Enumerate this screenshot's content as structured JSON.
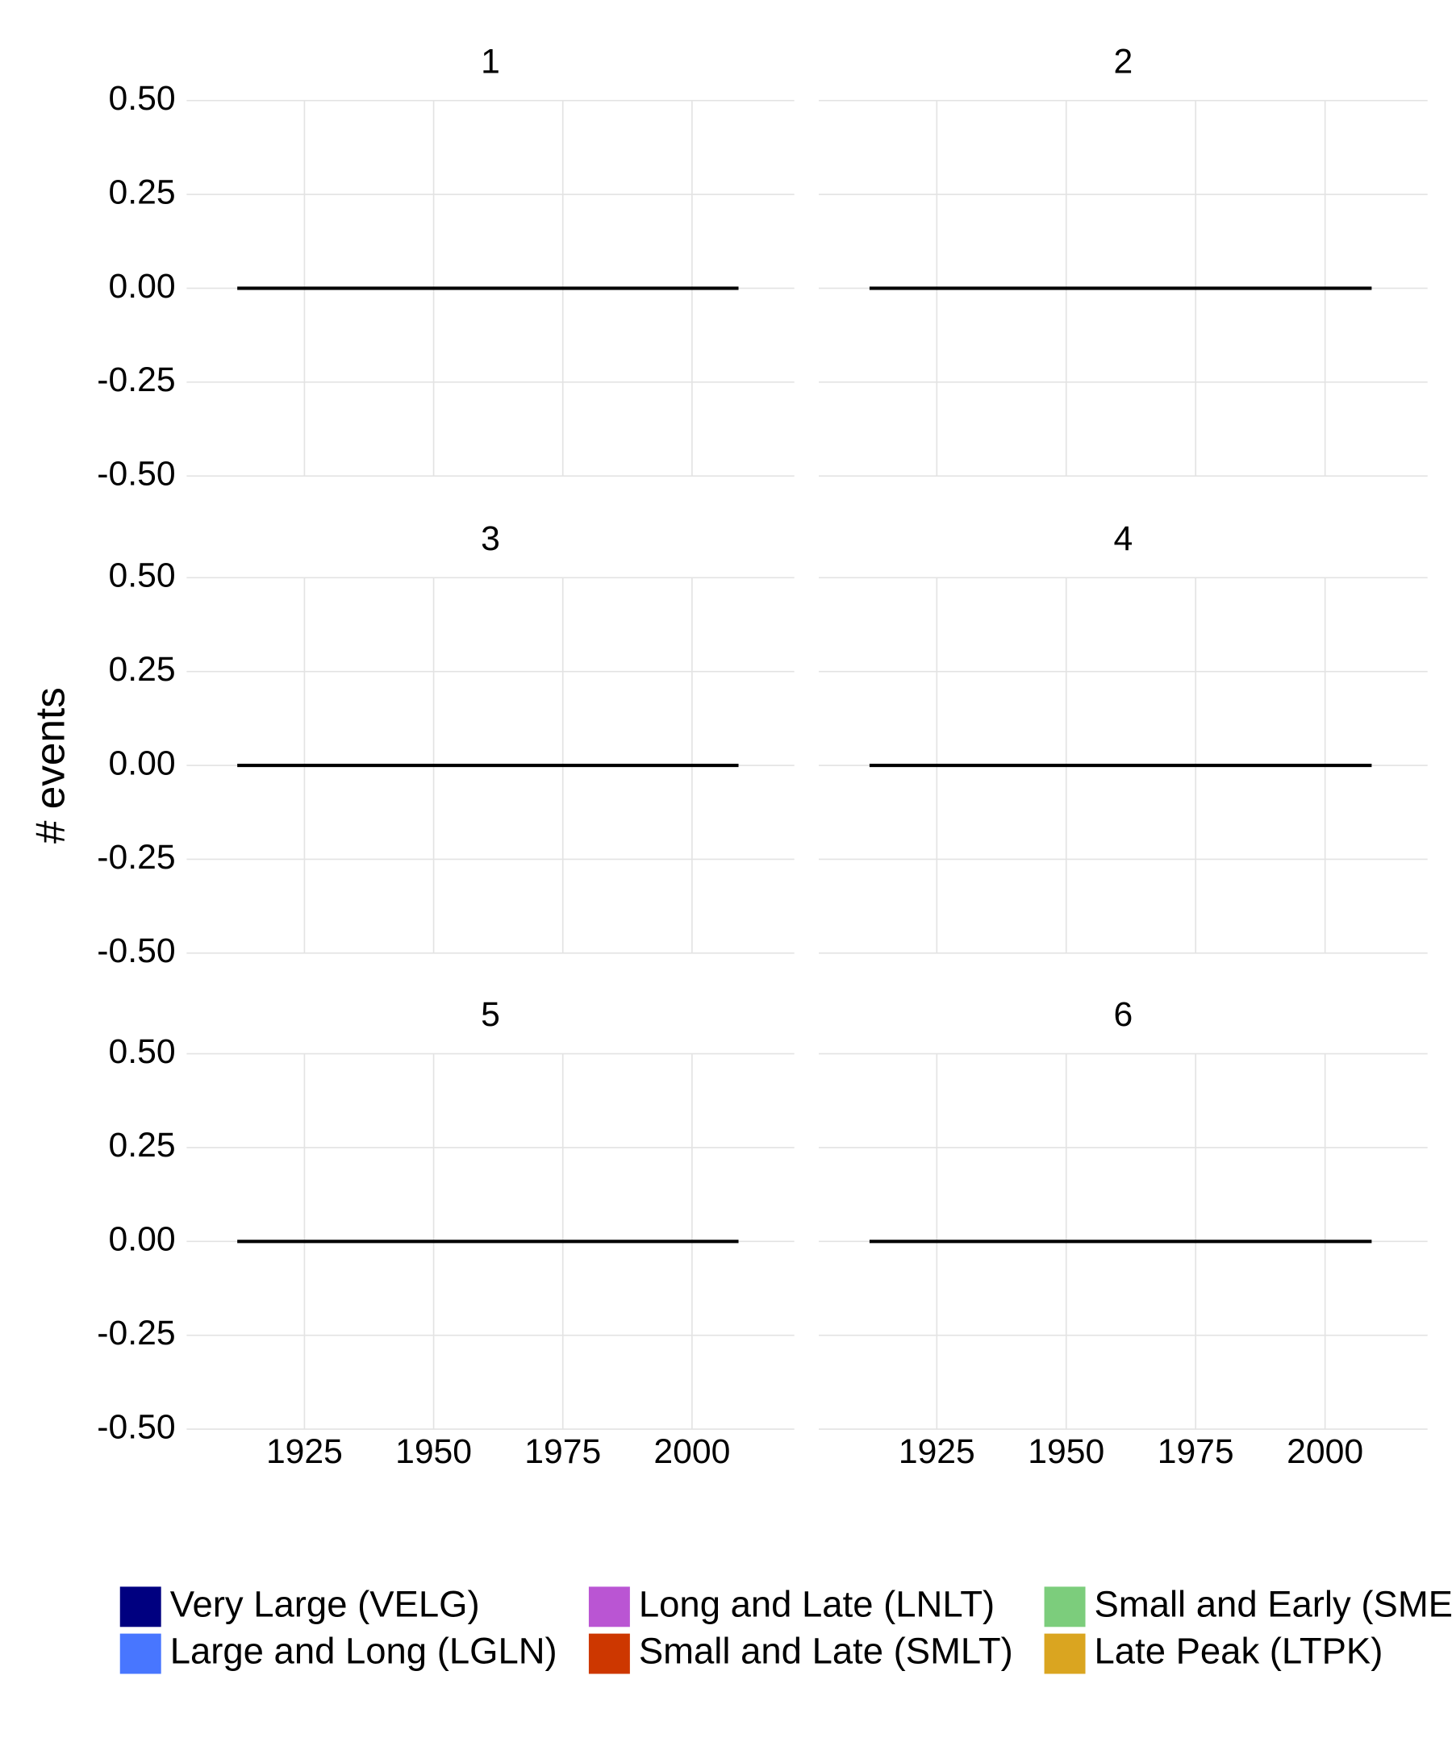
{
  "ylabel": "# events",
  "legend": [
    {
      "name": "Very Large (VELG)",
      "color": "#000080"
    },
    {
      "name": "Large and Long (LGLN)",
      "color": "#4876ff"
    },
    {
      "name": "Long and Late (LNLT)",
      "color": "#ba55d3"
    },
    {
      "name": "Small and Late (SMLT)",
      "color": "#cd3700"
    },
    {
      "name": "Small and Early (SME",
      "color": "#7ccd7c"
    },
    {
      "name": "Late Peak (LTPK)",
      "color": "#daa520"
    }
  ],
  "chart_data": [
    {
      "type": "line",
      "title": "1",
      "x": [
        1912,
        2009
      ],
      "values": [
        0,
        0
      ],
      "color": "#000000",
      "xlim": [
        1902.2,
        2019.8
      ],
      "ylim": [
        -0.5,
        0.5
      ],
      "xticks": [
        1925,
        1950,
        1975,
        2000
      ],
      "yticks": [
        {
          "value": -0.5,
          "label": "-0.50"
        },
        {
          "value": -0.25,
          "label": "-0.25"
        },
        {
          "value": 0,
          "label": "0.00"
        },
        {
          "value": 0.25,
          "label": "0.25"
        },
        {
          "value": 0.5,
          "label": "0.50"
        }
      ],
      "grid": true
    },
    {
      "type": "line",
      "title": "2",
      "x": [
        1912,
        2009
      ],
      "values": [
        0,
        0
      ],
      "color": "#000000",
      "xlim": [
        1902.2,
        2019.8
      ],
      "ylim": [
        -0.5,
        0.5
      ],
      "xticks": [
        1925,
        1950,
        1975,
        2000
      ],
      "yticks": [
        {
          "value": -0.5,
          "label": "-0.50"
        },
        {
          "value": -0.25,
          "label": "-0.25"
        },
        {
          "value": 0,
          "label": "0.00"
        },
        {
          "value": 0.25,
          "label": "0.25"
        },
        {
          "value": 0.5,
          "label": "0.50"
        }
      ],
      "grid": true
    },
    {
      "type": "line",
      "title": "3",
      "x": [
        1912,
        2009
      ],
      "values": [
        0,
        0
      ],
      "color": "#000000",
      "xlim": [
        1902.2,
        2019.8
      ],
      "ylim": [
        -0.5,
        0.5
      ],
      "xticks": [
        1925,
        1950,
        1975,
        2000
      ],
      "yticks": [
        {
          "value": -0.5,
          "label": "-0.50"
        },
        {
          "value": -0.25,
          "label": "-0.25"
        },
        {
          "value": 0,
          "label": "0.00"
        },
        {
          "value": 0.25,
          "label": "0.25"
        },
        {
          "value": 0.5,
          "label": "0.50"
        }
      ],
      "grid": true
    },
    {
      "type": "line",
      "title": "4",
      "x": [
        1912,
        2009
      ],
      "values": [
        0,
        0
      ],
      "color": "#000000",
      "xlim": [
        1902.2,
        2019.8
      ],
      "ylim": [
        -0.5,
        0.5
      ],
      "xticks": [
        1925,
        1950,
        1975,
        2000
      ],
      "yticks": [
        {
          "value": -0.5,
          "label": "-0.50"
        },
        {
          "value": -0.25,
          "label": "-0.25"
        },
        {
          "value": 0,
          "label": "0.00"
        },
        {
          "value": 0.25,
          "label": "0.25"
        },
        {
          "value": 0.5,
          "label": "0.50"
        }
      ],
      "grid": true
    },
    {
      "type": "line",
      "title": "5",
      "x": [
        1912,
        2009
      ],
      "values": [
        0,
        0
      ],
      "color": "#000000",
      "xlim": [
        1902.2,
        2019.8
      ],
      "ylim": [
        -0.5,
        0.5
      ],
      "xticks": [
        1925,
        1950,
        1975,
        2000
      ],
      "yticks": [
        {
          "value": -0.5,
          "label": "-0.50"
        },
        {
          "value": -0.25,
          "label": "-0.25"
        },
        {
          "value": 0,
          "label": "0.00"
        },
        {
          "value": 0.25,
          "label": "0.25"
        },
        {
          "value": 0.5,
          "label": "0.50"
        }
      ],
      "grid": true
    },
    {
      "type": "line",
      "title": "6",
      "x": [
        1912,
        2009
      ],
      "values": [
        0,
        0
      ],
      "color": "#000000",
      "xlim": [
        1902.2,
        2019.8
      ],
      "ylim": [
        -0.5,
        0.5
      ],
      "xticks": [
        1925,
        1950,
        1975,
        2000
      ],
      "yticks": [
        {
          "value": -0.5,
          "label": "-0.50"
        },
        {
          "value": -0.25,
          "label": "-0.25"
        },
        {
          "value": 0,
          "label": "0.00"
        },
        {
          "value": 0.25,
          "label": "0.25"
        },
        {
          "value": 0.5,
          "label": "0.50"
        }
      ],
      "grid": true
    }
  ]
}
